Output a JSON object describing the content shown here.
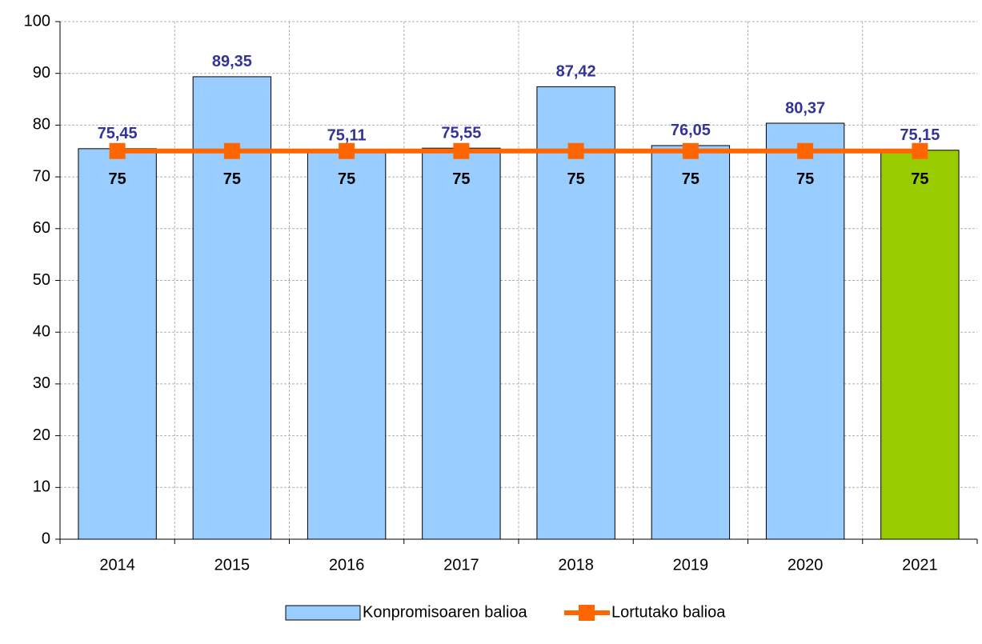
{
  "chart_data": {
    "type": "bar",
    "categories": [
      "2014",
      "2015",
      "2016",
      "2017",
      "2018",
      "2019",
      "2020",
      "2021"
    ],
    "series": [
      {
        "name": "Konpromisoaren balioa",
        "type": "bar",
        "color": "#99ccff",
        "point_colors": [
          "#99ccff",
          "#99ccff",
          "#99ccff",
          "#99ccff",
          "#99ccff",
          "#99ccff",
          "#99ccff",
          "#99cc00"
        ],
        "values": [
          75.45,
          89.35,
          75.11,
          75.55,
          87.42,
          76.05,
          80.37,
          75.15
        ],
        "value_labels": [
          "75,45",
          "89,35",
          "75,11",
          "75,55",
          "87,42",
          "76,05",
          "80,37",
          "75,15"
        ],
        "label_color": "#333399"
      },
      {
        "name": "Lortutako balioa",
        "type": "line",
        "color": "#ff6600",
        "values": [
          75,
          75,
          75,
          75,
          75,
          75,
          75,
          75
        ],
        "label_color": "#000000"
      }
    ],
    "ylim": [
      0,
      100
    ],
    "yticks": [
      0,
      10,
      20,
      30,
      40,
      50,
      60,
      70,
      80,
      90,
      100
    ],
    "grid": true,
    "legend": "bottom"
  }
}
